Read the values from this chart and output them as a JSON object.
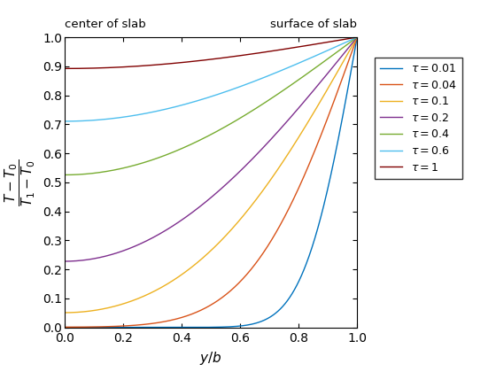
{
  "tau_values": [
    0.01,
    0.04,
    0.1,
    0.2,
    0.4,
    0.6,
    1.0
  ],
  "tau_labels": [
    "$\\tau=0.01$",
    "$\\tau=0.04$",
    "$\\tau=0.1$",
    "$\\tau=0.2$",
    "$\\tau=0.4$",
    "$\\tau=0.6$",
    "$\\tau=1$"
  ],
  "colors": [
    "#0072BD",
    "#D95319",
    "#EDB120",
    "#7E2F8E",
    "#77AC30",
    "#4DBEEE",
    "#800000"
  ],
  "xlabel": "$y/b$",
  "ylabel": "$\\dfrac{T-T_0}{T_1-T_0}$",
  "xlim": [
    0,
    1
  ],
  "ylim": [
    0,
    1
  ],
  "title_left": "center of slab",
  "title_right": "surface of slab",
  "n_terms": 200,
  "n_points": 500
}
